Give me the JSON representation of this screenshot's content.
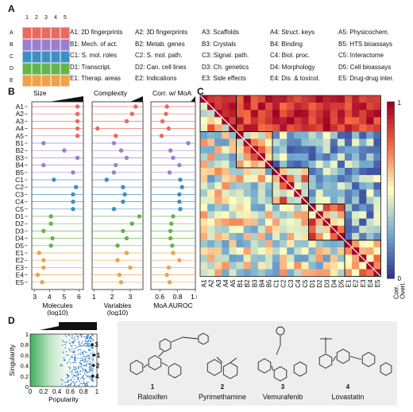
{
  "panels": {
    "A": "A",
    "B": "B",
    "C": "C",
    "D": "D"
  },
  "level_numbers": [
    "1",
    "2",
    "3",
    "4",
    "5"
  ],
  "level_letters": [
    "A",
    "B",
    "C",
    "D",
    "E"
  ],
  "level_colors": [
    "#e86a61",
    "#9a7fd1",
    "#3d8fc6",
    "#63b54d",
    "#f0a24a"
  ],
  "legend_columns": [
    [
      "A1: 2D fingerprints",
      "B1: Mech. of act.",
      "C1: S. mol. roles",
      "D1: Transcript.",
      "E1: Therap. areas"
    ],
    [
      "A2: 3D fingerprints",
      "B2: Metab. genes",
      "C2: S. mol. path.",
      "D2: Can. cell lines",
      "E2: Indications"
    ],
    [
      "A3: Scaffolds",
      "B3: Crystals",
      "C3: Signal. path.",
      "D3: Ch. genetics",
      "E3: Side effects"
    ],
    [
      "A4: Struct. keys",
      "B4: Binding",
      "C4: Biol. proc.",
      "D4: Morphology",
      "E4: Dis. & toxicol."
    ],
    [
      "A5: Physicochem.",
      "B5: HTS bioassays",
      "C5: Interactome",
      "D5: Cell bioassays",
      "E5: Drug-drug inter."
    ]
  ],
  "spaces": [
    "A1",
    "A2",
    "A3",
    "A4",
    "A5",
    "B1",
    "B2",
    "B3",
    "B4",
    "B5",
    "C1",
    "C2",
    "C3",
    "C4",
    "C5",
    "D1",
    "D2",
    "D3",
    "D4",
    "D5",
    "E1",
    "E2",
    "E3",
    "E4",
    "E5"
  ],
  "chart_data": [
    {
      "type": "scatter",
      "title": "Size",
      "xlabel": "Molecules (log10)",
      "xticks": [
        "3",
        "4",
        "5",
        "6"
      ],
      "xlim": [
        2.8,
        6.3
      ],
      "values": [
        5.9,
        5.9,
        5.9,
        5.9,
        5.9,
        3.6,
        5.0,
        5.9,
        3.6,
        5.6,
        4.3,
        5.8,
        5.6,
        5.6,
        5.6,
        4.1,
        4.1,
        3.6,
        4.2,
        4.1,
        3.3,
        3.6,
        3.6,
        3.2,
        3.5
      ]
    },
    {
      "type": "scatter",
      "title": "Complexity",
      "xlabel": "Variables (log10)",
      "xticks": [
        "1",
        "2",
        "3"
      ],
      "xlim": [
        0.9,
        3.7
      ],
      "values": [
        3.3,
        3.1,
        2.8,
        1.2,
        2.2,
        2.1,
        2.5,
        2.8,
        2.2,
        2.1,
        1.7,
        2.6,
        2.7,
        2.6,
        2.1,
        3.5,
        3.1,
        2.6,
        2.8,
        2.3,
        2.8,
        2.3,
        3.0,
        2.4,
        2.5
      ]
    },
    {
      "type": "scatter",
      "title": "Corr. w/ MoA",
      "xlabel": "MoA AUROC",
      "xticks": [
        "0.6",
        "0.8",
        "1.0"
      ],
      "xlim": [
        0.5,
        1.0
      ],
      "values": [
        0.68,
        0.67,
        0.63,
        0.7,
        0.62,
        0.92,
        0.72,
        0.75,
        0.82,
        0.71,
        0.83,
        0.85,
        0.82,
        0.82,
        0.83,
        0.75,
        0.73,
        0.72,
        0.72,
        0.74,
        0.75,
        0.82,
        0.7,
        0.68,
        0.71
      ]
    },
    {
      "type": "heatmap",
      "title": "",
      "colorbar_label": "Corr.",
      "colorbar_label2": "Overl.",
      "colorbar_ticks": [
        "0",
        "1"
      ],
      "range": [
        0,
        1
      ]
    },
    {
      "type": "scatter",
      "xlabel": "Popularity",
      "ylabel": "Singularity",
      "xticks": [
        "0",
        "0.2",
        "0.4",
        "0.6",
        "0.8",
        "1"
      ],
      "yticks": [
        "0",
        "0.2",
        "0.4",
        "0.6",
        "0.8",
        "1"
      ],
      "xlim": [
        0,
        1
      ],
      "ylim": [
        0,
        1
      ],
      "highlights": [
        {
          "label": "3",
          "x": 0.93,
          "y": 0.8
        },
        {
          "label": "1",
          "x": 0.96,
          "y": 0.6
        },
        {
          "label": "2",
          "x": 0.95,
          "y": 0.4
        },
        {
          "label": "4",
          "x": 0.94,
          "y": 0.2
        }
      ]
    }
  ],
  "molecules": [
    {
      "number": "1",
      "name": "Raloxifen"
    },
    {
      "number": "2",
      "name": "Pyrimethamine"
    },
    {
      "number": "3",
      "name": "Vemurafenib"
    },
    {
      "number": "4",
      "name": "Lovastatin"
    }
  ]
}
